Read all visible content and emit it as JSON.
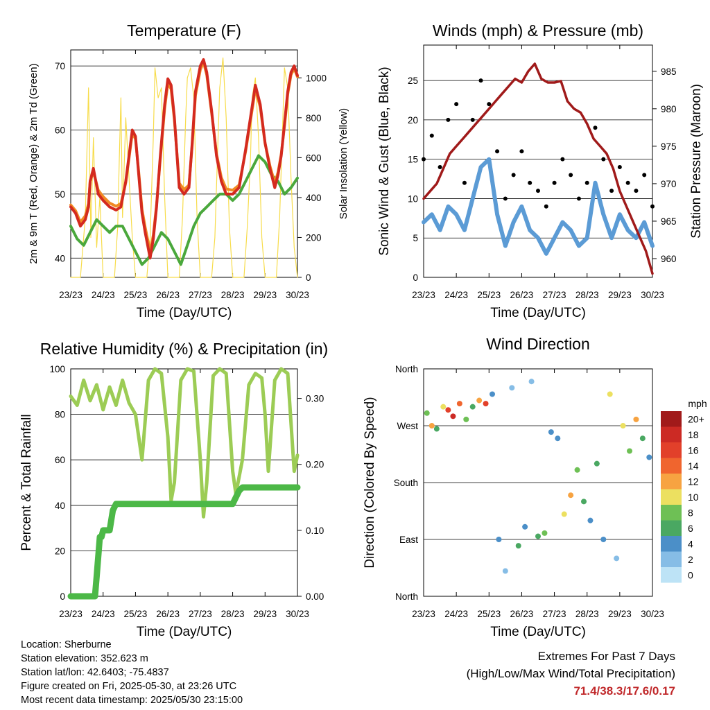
{
  "colors": {
    "red": "#d42a1f",
    "orange": "#f08a24",
    "green": "#4aa83c",
    "yellow": "#f7dc4a",
    "blue": "#5b9bd5",
    "black": "#000000",
    "maroon": "#a01a1a",
    "rh": "#9ccc55",
    "precip": "#4cb847",
    "extremes": "#c0282a"
  },
  "time_ticks": [
    "23/23",
    "24/23",
    "25/23",
    "26/23",
    "27/23",
    "28/23",
    "29/23",
    "30/23"
  ],
  "footer": {
    "location": "Location: Sherburne",
    "elevation": "Station elevation: 352.623 m",
    "latlon": "Station lat/lon: 42.6403; -75.4837",
    "created": "Figure created on Fri, 2025-05-30, at 23:26 UTC",
    "latest": "Most recent data timestamp: 2025/05/30 23:15:00"
  },
  "extremes": {
    "title": "Extremes For Past 7 Days",
    "subtitle": "(High/Low/Max Wind/Total Precipitation)",
    "values": "71.4/38.3/17.6/0.17"
  },
  "chart_data": [
    {
      "type": "line",
      "title": "Temperature (F)",
      "xlabel": "Time (Day/UTC)",
      "ylabel": "2m & 9m T (Red, Orange) & 2m Td (Green)",
      "ylabel_right": "Solar Insolation (Yellow)",
      "ylim": [
        37,
        72.5
      ],
      "ylim_right": [
        0,
        1140
      ],
      "yticks": [
        40,
        50,
        60,
        70
      ],
      "yticks_right": [
        0,
        200,
        400,
        600,
        800,
        1000
      ],
      "x_days": [
        0,
        7
      ],
      "series": [
        {
          "name": "2m T",
          "color": "red",
          "x": [
            0,
            0.15,
            0.3,
            0.45,
            0.55,
            0.6,
            0.7,
            0.85,
            1,
            1.2,
            1.4,
            1.55,
            1.7,
            1.8,
            1.9,
            2,
            2.1,
            2.2,
            2.3,
            2.45,
            2.55,
            2.65,
            2.75,
            2.9,
            3,
            3.1,
            3.2,
            3.35,
            3.5,
            3.65,
            3.75,
            3.85,
            4,
            4.1,
            4.2,
            4.35,
            4.5,
            4.65,
            4.8,
            5,
            5.2,
            5.4,
            5.55,
            5.7,
            5.85,
            6,
            6.15,
            6.3,
            6.4,
            6.5,
            6.6,
            6.7,
            6.8,
            6.9,
            7
          ],
          "y": [
            48,
            47,
            45,
            46,
            48,
            52,
            54,
            50,
            49,
            48,
            47.5,
            48,
            52,
            56,
            60,
            59,
            53,
            47,
            44,
            40,
            43,
            48,
            55,
            64,
            68,
            67,
            62,
            51,
            50,
            51,
            58,
            66,
            70,
            71,
            69,
            63,
            56,
            52,
            50,
            50,
            51,
            57,
            62,
            67,
            64,
            58,
            54,
            51,
            53,
            56,
            61,
            66,
            69,
            70,
            68.5
          ]
        },
        {
          "name": "9m T",
          "color": "orange",
          "x": [
            0,
            0.15,
            0.3,
            0.45,
            0.55,
            0.6,
            0.7,
            0.85,
            1,
            1.2,
            1.4,
            1.55,
            1.7,
            1.8,
            1.9,
            2,
            2.1,
            2.2,
            2.3,
            2.45,
            2.55,
            2.65,
            2.75,
            2.9,
            3,
            3.1,
            3.2,
            3.35,
            3.5,
            3.65,
            3.75,
            3.85,
            4,
            4.1,
            4.2,
            4.35,
            4.5,
            4.65,
            4.8,
            5,
            5.2,
            5.4,
            5.55,
            5.7,
            5.85,
            6,
            6.15,
            6.3,
            6.4,
            6.5,
            6.6,
            6.7,
            6.8,
            6.9,
            7
          ],
          "y": [
            48.3,
            47.4,
            45.6,
            46.6,
            48.5,
            52,
            53.5,
            50.6,
            49.6,
            48.6,
            48.1,
            48.5,
            51.8,
            55.6,
            59.5,
            58.6,
            53.4,
            47.6,
            44.8,
            41,
            43.6,
            48.3,
            54.6,
            63.4,
            67.3,
            66.4,
            61.6,
            51.7,
            50.7,
            51.4,
            57.6,
            65.4,
            69.4,
            70.6,
            68.6,
            62.7,
            56.3,
            52.6,
            50.8,
            50.6,
            51.4,
            56.7,
            61.5,
            66.4,
            63.6,
            57.9,
            54.4,
            51.7,
            53.4,
            56.2,
            60.6,
            65.6,
            68.6,
            69.6,
            68.3
          ]
        },
        {
          "name": "2m Td",
          "color": "green",
          "x": [
            0,
            0.2,
            0.4,
            0.6,
            0.8,
            1,
            1.2,
            1.4,
            1.6,
            1.8,
            2,
            2.2,
            2.4,
            2.6,
            2.8,
            3,
            3.2,
            3.4,
            3.6,
            3.8,
            4,
            4.2,
            4.4,
            4.6,
            4.8,
            5,
            5.2,
            5.4,
            5.6,
            5.8,
            6,
            6.2,
            6.4,
            6.6,
            6.8,
            7
          ],
          "y": [
            45,
            43,
            42,
            44,
            46,
            45,
            44,
            45,
            45,
            43,
            41,
            39,
            40,
            42,
            44,
            43,
            41,
            39,
            42,
            45,
            47,
            48,
            49,
            50,
            50,
            49,
            50,
            52,
            54,
            56,
            55,
            53,
            52,
            50,
            51,
            52.5
          ]
        },
        {
          "name": "Solar Insolation",
          "color": "yellow",
          "axis": "right",
          "x": [
            0,
            0.3,
            0.45,
            0.55,
            0.62,
            0.7,
            0.8,
            0.9,
            1,
            1.35,
            1.45,
            1.5,
            1.55,
            1.6,
            1.7,
            1.8,
            1.9,
            2,
            2.35,
            2.45,
            2.55,
            2.6,
            2.7,
            2.8,
            2.9,
            3,
            3.35,
            3.45,
            3.55,
            3.6,
            3.7,
            3.8,
            3.9,
            4,
            4.35,
            4.45,
            4.55,
            4.6,
            4.7,
            4.8,
            4.9,
            5,
            5.35,
            5.45,
            5.55,
            5.6,
            5.7,
            5.8,
            5.9,
            6,
            6.35,
            6.45,
            6.55,
            6.6,
            6.7,
            6.8,
            6.9,
            7
          ],
          "y": [
            0,
            0,
            300,
            950,
            200,
            700,
            150,
            400,
            0,
            0,
            250,
            600,
            900,
            300,
            800,
            500,
            200,
            0,
            0,
            200,
            700,
            1050,
            900,
            950,
            400,
            0,
            0,
            300,
            800,
            1000,
            1050,
            900,
            300,
            0,
            0,
            200,
            700,
            950,
            1100,
            800,
            250,
            0,
            0,
            250,
            600,
            900,
            1000,
            700,
            200,
            0,
            0,
            300,
            800,
            1050,
            950,
            500,
            150,
            0
          ]
        }
      ]
    },
    {
      "type": "line",
      "title": "Winds (mph) & Pressure (mb)",
      "xlabel": "Time (Day/UTC)",
      "ylabel": "Sonic Wind & Gust (Blue, Black)",
      "ylabel_right": "Station Pressure (Maroon)",
      "ylim": [
        0,
        29.5
      ],
      "ylim_right": [
        957.5,
        988.5
      ],
      "yticks": [
        0,
        5,
        10,
        15,
        20,
        25
      ],
      "yticks_right": [
        960,
        965,
        970,
        975,
        980,
        985
      ],
      "x_days": [
        0,
        7
      ],
      "series": [
        {
          "name": "Sonic Wind",
          "color": "blue",
          "x": [
            0,
            0.25,
            0.5,
            0.75,
            1,
            1.25,
            1.5,
            1.75,
            2,
            2.25,
            2.5,
            2.75,
            3,
            3.25,
            3.5,
            3.75,
            4,
            4.25,
            4.5,
            4.75,
            5,
            5.25,
            5.5,
            5.75,
            6,
            6.25,
            6.5,
            6.75,
            7
          ],
          "y": [
            7,
            8,
            6,
            9,
            8,
            6,
            10,
            14,
            15,
            8,
            4,
            7,
            9,
            6,
            5,
            3,
            5,
            7,
            6,
            4,
            5,
            12,
            8,
            5,
            8,
            6,
            5,
            7,
            4
          ]
        },
        {
          "name": "Gust",
          "color": "black",
          "x": [
            0,
            0.25,
            0.5,
            0.75,
            1,
            1.25,
            1.5,
            1.75,
            2,
            2.25,
            2.5,
            2.75,
            3,
            3.25,
            3.5,
            3.75,
            4,
            4.25,
            4.5,
            4.75,
            5,
            5.25,
            5.5,
            5.75,
            6,
            6.25,
            6.5,
            6.75,
            7
          ],
          "y": [
            15,
            18,
            14,
            20,
            22,
            12,
            20,
            25,
            22,
            16,
            10,
            13,
            16,
            12,
            11,
            9,
            12,
            15,
            13,
            10,
            12,
            19,
            15,
            11,
            14,
            12,
            11,
            13,
            9
          ]
        },
        {
          "name": "Station Pressure",
          "color": "maroon",
          "axis": "right",
          "x": [
            0,
            0.2,
            0.4,
            0.6,
            0.8,
            1,
            1.2,
            1.4,
            1.6,
            1.8,
            2,
            2.2,
            2.4,
            2.6,
            2.8,
            3,
            3.2,
            3.4,
            3.6,
            3.8,
            4,
            4.2,
            4.4,
            4.6,
            4.8,
            5,
            5.2,
            5.4,
            5.6,
            5.8,
            6,
            6.2,
            6.4,
            6.6,
            6.8,
            7
          ],
          "y": [
            968,
            969,
            970,
            972,
            974,
            975,
            976,
            977,
            978,
            979,
            980,
            981,
            982,
            983,
            984,
            983.5,
            985,
            986,
            984,
            983.5,
            983.5,
            983.7,
            981,
            980,
            979.5,
            978,
            976,
            975,
            974,
            972,
            969,
            967,
            965,
            963,
            961,
            958
          ]
        }
      ]
    },
    {
      "type": "line",
      "title": "Relative Humidity (%) & Precipitation (in)",
      "xlabel": "Time (Day/UTC)",
      "ylabel": "Percent & Total Rainfall",
      "ylim": [
        0,
        100
      ],
      "ylim_right": [
        0,
        0.3448
      ],
      "yticks": [
        0,
        20,
        40,
        60,
        80,
        100
      ],
      "yticks_right": [
        0.0,
        0.1,
        0.2,
        0.3
      ],
      "yticklabels_right": [
        "0.00",
        "0.10",
        "0.20",
        "0.30"
      ],
      "x_days": [
        0,
        7
      ],
      "series": [
        {
          "name": "Relative Humidity",
          "color": "rh",
          "x": [
            0,
            0.2,
            0.4,
            0.6,
            0.8,
            1,
            1.2,
            1.4,
            1.6,
            1.8,
            2,
            2.2,
            2.4,
            2.6,
            2.8,
            3,
            3.1,
            3.2,
            3.4,
            3.6,
            3.8,
            4,
            4.1,
            4.2,
            4.4,
            4.6,
            4.8,
            5,
            5.1,
            5.3,
            5.5,
            5.7,
            5.9,
            6,
            6.1,
            6.3,
            6.5,
            6.7,
            6.9,
            7
          ],
          "y": [
            88,
            84,
            95,
            86,
            93,
            82,
            92,
            84,
            95,
            85,
            80,
            60,
            95,
            100,
            98,
            70,
            42,
            50,
            95,
            100,
            99,
            60,
            35,
            50,
            97,
            100,
            98,
            55,
            45,
            60,
            93,
            98,
            96,
            80,
            55,
            95,
            100,
            98,
            55,
            62
          ]
        },
        {
          "name": "Total Precipitation",
          "color": "precip",
          "axis": "right",
          "x": [
            0,
            0.3,
            0.75,
            0.8,
            0.85,
            0.9,
            0.95,
            1.0,
            1.2,
            1.3,
            1.4,
            1.5,
            1.6,
            5.0,
            5.1,
            5.2,
            5.3,
            7
          ],
          "y": [
            0,
            0,
            0,
            0.03,
            0.06,
            0.09,
            0.09,
            0.1,
            0.1,
            0.13,
            0.14,
            0.14,
            0.14,
            0.14,
            0.15,
            0.16,
            0.165,
            0.165
          ]
        }
      ]
    },
    {
      "type": "scatter",
      "title": "Wind Direction",
      "xlabel": "Time (Day/UTC)",
      "ylabel": "Direction (Colored By Speed)",
      "yticks": [
        "North",
        "East",
        "South",
        "West",
        "North"
      ],
      "x_days": [
        0,
        7
      ],
      "legend_title": "mph",
      "legend_labels": [
        "20+",
        "18",
        "16",
        "14",
        "12",
        "10",
        "8",
        "6",
        "4",
        "2",
        "0"
      ],
      "legend_colors": [
        "#a11a1a",
        "#cc2a24",
        "#e2402a",
        "#f0652e",
        "#f7a341",
        "#ece060",
        "#6ec055",
        "#4aa862",
        "#4b8fc8",
        "#86bde6",
        "#bde3f6"
      ],
      "points": [
        {
          "x": 0.1,
          "y": 290,
          "speed": 8
        },
        {
          "x": 0.25,
          "y": 270,
          "speed": 12
        },
        {
          "x": 0.4,
          "y": 265,
          "speed": 6
        },
        {
          "x": 0.6,
          "y": 300,
          "speed": 10
        },
        {
          "x": 0.75,
          "y": 295,
          "speed": 16
        },
        {
          "x": 0.9,
          "y": 285,
          "speed": 18
        },
        {
          "x": 1.1,
          "y": 305,
          "speed": 14
        },
        {
          "x": 1.3,
          "y": 280,
          "speed": 8
        },
        {
          "x": 1.5,
          "y": 300,
          "speed": 6
        },
        {
          "x": 1.7,
          "y": 310,
          "speed": 12
        },
        {
          "x": 1.9,
          "y": 305,
          "speed": 16
        },
        {
          "x": 2.1,
          "y": 320,
          "speed": 4
        },
        {
          "x": 2.3,
          "y": 90,
          "speed": 4
        },
        {
          "x": 2.5,
          "y": 40,
          "speed": 2
        },
        {
          "x": 2.7,
          "y": 330,
          "speed": 2
        },
        {
          "x": 2.9,
          "y": 80,
          "speed": 6
        },
        {
          "x": 3.1,
          "y": 110,
          "speed": 4
        },
        {
          "x": 3.3,
          "y": 340,
          "speed": 2
        },
        {
          "x": 3.5,
          "y": 95,
          "speed": 6
        },
        {
          "x": 3.7,
          "y": 100,
          "speed": 8
        },
        {
          "x": 3.9,
          "y": 260,
          "speed": 4
        },
        {
          "x": 4.1,
          "y": 250,
          "speed": 4
        },
        {
          "x": 4.3,
          "y": 130,
          "speed": 10
        },
        {
          "x": 4.5,
          "y": 160,
          "speed": 12
        },
        {
          "x": 4.7,
          "y": 200,
          "speed": 8
        },
        {
          "x": 4.9,
          "y": 150,
          "speed": 6
        },
        {
          "x": 5.1,
          "y": 120,
          "speed": 4
        },
        {
          "x": 5.3,
          "y": 210,
          "speed": 6
        },
        {
          "x": 5.5,
          "y": 90,
          "speed": 4
        },
        {
          "x": 5.7,
          "y": 320,
          "speed": 10
        },
        {
          "x": 5.9,
          "y": 60,
          "speed": 2
        },
        {
          "x": 6.1,
          "y": 270,
          "speed": 10
        },
        {
          "x": 6.3,
          "y": 230,
          "speed": 8
        },
        {
          "x": 6.5,
          "y": 280,
          "speed": 12
        },
        {
          "x": 6.7,
          "y": 250,
          "speed": 6
        },
        {
          "x": 6.9,
          "y": 220,
          "speed": 4
        }
      ]
    }
  ]
}
